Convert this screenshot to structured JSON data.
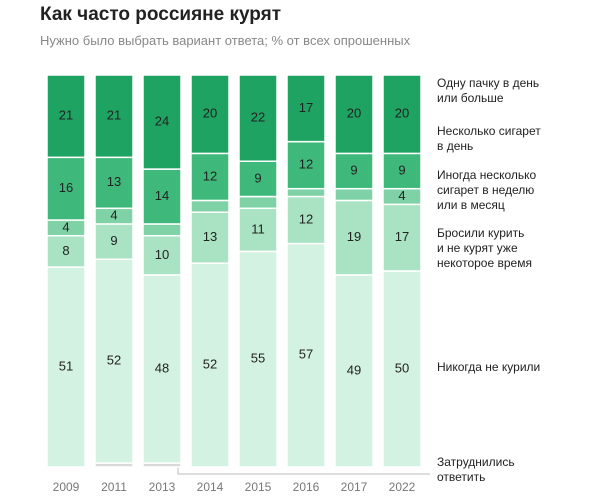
{
  "chart_data": {
    "type": "stacked-bar",
    "title": "Как часто россияне курят",
    "subtitle": "Нужно было выбрать вариант ответа; % от всех опрошенных",
    "categories": [
      "2009",
      "2011",
      "2013",
      "2014",
      "2015",
      "2016",
      "2017",
      "2022"
    ],
    "ylim": [
      0,
      100
    ],
    "series": [
      {
        "name": "Затруднились\nответить",
        "color": "#d9d9d9",
        "values": [
          0,
          1,
          1,
          0,
          0,
          0,
          0,
          0
        ]
      },
      {
        "name": "Никогда не курили",
        "color": "#d4f2e2",
        "values": [
          51,
          52,
          48,
          52,
          55,
          57,
          49,
          50
        ]
      },
      {
        "name": "Бросили курить\nи не курят уже\nнекоторое время",
        "color": "#a9e3c4",
        "values": [
          8,
          9,
          10,
          13,
          11,
          12,
          19,
          17
        ]
      },
      {
        "name": "Иногда несколько\nсигарет в неделю\nили в месяц",
        "color": "#7fd2a5",
        "values": [
          4,
          4,
          3,
          3,
          3,
          2,
          3,
          4
        ]
      },
      {
        "name": "Несколько сигарет\nв день",
        "color": "#3fb97b",
        "values": [
          16,
          13,
          14,
          12,
          9,
          12,
          9,
          9
        ]
      },
      {
        "name": "Одну пачку в день\nили больше",
        "color": "#1ea362",
        "values": [
          21,
          21,
          24,
          20,
          22,
          17,
          20,
          20
        ]
      }
    ]
  }
}
